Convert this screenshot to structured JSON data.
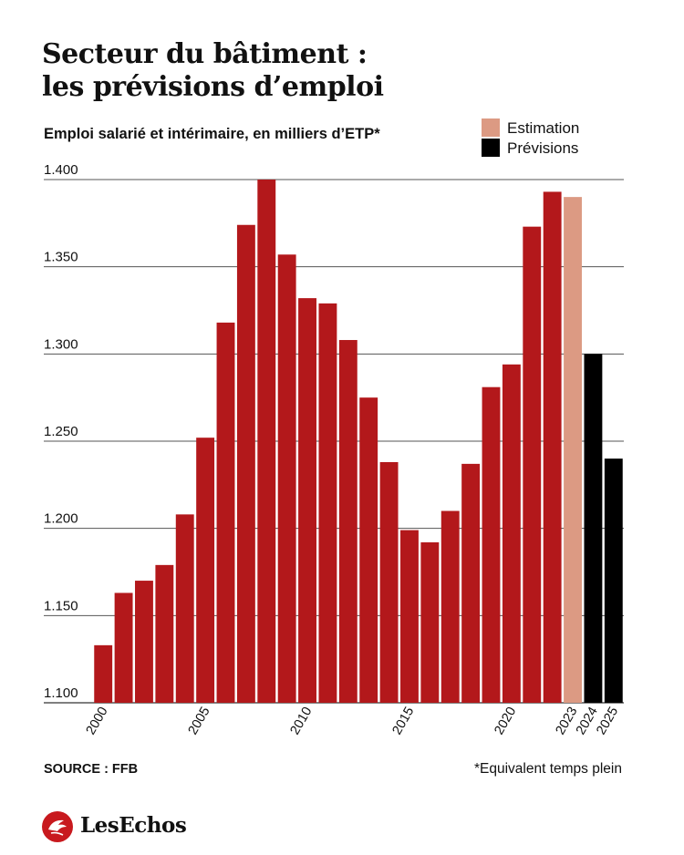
{
  "header": {
    "title_line1": "Secteur du bâtiment :",
    "title_line2": "les prévisions d’emploi",
    "subtitle": "Emploi salarié et intérimaire, en milliers d’ETP*"
  },
  "legend": {
    "estimation_label": "Estimation",
    "previsions_label": "Prévisions"
  },
  "colors": {
    "actual": "#b3181b",
    "estimation": "#dc9a83",
    "previsions": "#000000",
    "grid": "#555555",
    "text": "#111111"
  },
  "chart_data": {
    "type": "bar",
    "categories": [
      "2000",
      "2001",
      "2002",
      "2003",
      "2004",
      "2005",
      "2006",
      "2007",
      "2008",
      "2009",
      "2010",
      "2011",
      "2012",
      "2013",
      "2014",
      "2015",
      "2016",
      "2017",
      "2018",
      "2019",
      "2020",
      "2021",
      "2022",
      "2023",
      "2024",
      "2025"
    ],
    "values": [
      1133,
      1163,
      1170,
      1179,
      1208,
      1252,
      1318,
      1374,
      1400,
      1357,
      1332,
      1329,
      1308,
      1275,
      1238,
      1199,
      1192,
      1210,
      1237,
      1281,
      1294,
      1373,
      1393,
      1390,
      1300,
      1240
    ],
    "kinds": [
      "actual",
      "actual",
      "actual",
      "actual",
      "actual",
      "actual",
      "actual",
      "actual",
      "actual",
      "actual",
      "actual",
      "actual",
      "actual",
      "actual",
      "actual",
      "actual",
      "actual",
      "actual",
      "actual",
      "actual",
      "actual",
      "actual",
      "actual",
      "estimation",
      "previsions",
      "previsions"
    ],
    "x_tick_labels": [
      "2000",
      "",
      "",
      "",
      "",
      "2005",
      "",
      "",
      "",
      "",
      "2010",
      "",
      "",
      "",
      "",
      "2015",
      "",
      "",
      "",
      "",
      "2020",
      "",
      "",
      "2023",
      "2024",
      "2025"
    ],
    "y_ticks": [
      1100,
      1150,
      1200,
      1250,
      1300,
      1350,
      1400
    ],
    "y_tick_labels": [
      "1.100",
      "1.150",
      "1.200",
      "1.250",
      "1.300",
      "1.350",
      "1.400"
    ],
    "ylim": [
      1100,
      1400
    ],
    "grid": true,
    "legend_position": "top-right",
    "xlabel": "",
    "ylabel": ""
  },
  "footer": {
    "source": "SOURCE : FFB",
    "footnote": "*Equivalent temps plein",
    "logo_text": "LesEchos"
  }
}
